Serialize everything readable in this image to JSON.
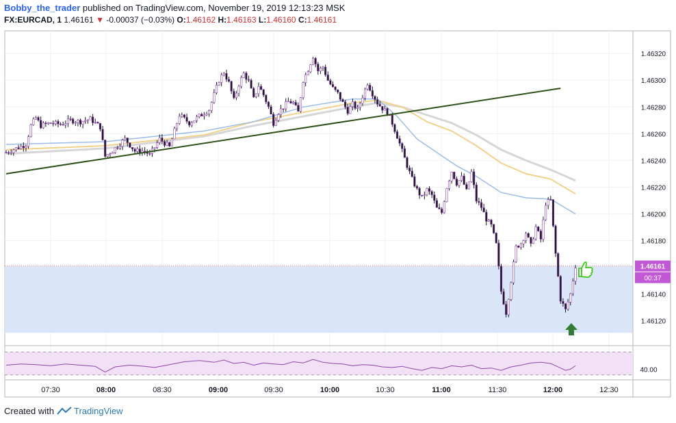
{
  "header": {
    "author": "Bobby_the_trader",
    "published_text": "published on TradingView.com, November 19, 2019 12:13:23 MSK",
    "symbol": "FX:EURCAD, 1",
    "last": "1.46161",
    "change_arrow": "▼",
    "change": "-0.00037 (−0.03%)",
    "o_label": "O:",
    "o": "1.46162",
    "h_label": "H:",
    "h": "1.46163",
    "l_label": "L:",
    "l": "1.46160",
    "c_label": "C:",
    "c": "1.46161"
  },
  "footer": {
    "created_with": "Created with",
    "brand": "TradingView"
  },
  "colors": {
    "candle": "#131722",
    "candle_outline": "#8e44ad",
    "trendline": "#2d5016",
    "ma_blue": "#9bbbe8",
    "ma_yellow": "#f2d28a",
    "ma_gray": "#d6d6d6",
    "zone_fill": "#dae6f8",
    "price_label": "#c158d6",
    "rsi_line": "#8e44ad",
    "rsi_band": "#f2e1f6",
    "thumb": "#4ccd2c",
    "arrow": "#2e7d32"
  },
  "chart_data": {
    "type": "candlestick",
    "symbol": "FX:EURCAD",
    "interval": "1",
    "price_axis": {
      "range": [
        1.46106,
        1.46337
      ],
      "ticks": [
        "1.46320",
        "1.46300",
        "1.46280",
        "1.46260",
        "1.46240",
        "1.46220",
        "1.46200",
        "1.46180",
        "1.46140",
        "1.46120"
      ]
    },
    "time_axis": {
      "ticks": [
        "07:30",
        "08:00",
        "08:30",
        "09:00",
        "09:30",
        "10:00",
        "10:30",
        "11:00",
        "11:30",
        "12:00",
        "12:30"
      ]
    },
    "last_price_label": "1.46161",
    "countdown_label": "00:37",
    "close_path": [
      [
        0,
        1.46246
      ],
      [
        4,
        1.46249
      ],
      [
        8,
        1.46252
      ],
      [
        10,
        1.46266
      ],
      [
        12,
        1.46272
      ],
      [
        14,
        1.46266
      ],
      [
        18,
        1.46268
      ],
      [
        22,
        1.46267
      ],
      [
        26,
        1.4627
      ],
      [
        30,
        1.46269
      ],
      [
        34,
        1.46271
      ],
      [
        38,
        1.46265
      ],
      [
        40,
        1.46243
      ],
      [
        44,
        1.46249
      ],
      [
        48,
        1.46256
      ],
      [
        52,
        1.46247
      ],
      [
        56,
        1.46247
      ],
      [
        58,
        1.46244
      ],
      [
        62,
        1.46256
      ],
      [
        66,
        1.4625
      ],
      [
        70,
        1.46274
      ],
      [
        74,
        1.46268
      ],
      [
        78,
        1.46273
      ],
      [
        82,
        1.46278
      ],
      [
        86,
        1.463
      ],
      [
        88,
        1.46306
      ],
      [
        90,
        1.46298
      ],
      [
        92,
        1.46285
      ],
      [
        94,
        1.46297
      ],
      [
        96,
        1.46305
      ],
      [
        98,
        1.46299
      ],
      [
        100,
        1.46286
      ],
      [
        102,
        1.46296
      ],
      [
        104,
        1.46289
      ],
      [
        106,
        1.4628
      ],
      [
        108,
        1.46268
      ],
      [
        110,
        1.46276
      ],
      [
        112,
        1.4628
      ],
      [
        114,
        1.46284
      ],
      [
        116,
        1.46283
      ],
      [
        118,
        1.46276
      ],
      [
        120,
        1.463
      ],
      [
        122,
        1.46308
      ],
      [
        124,
        1.46318
      ],
      [
        126,
        1.46307
      ],
      [
        128,
        1.4631
      ],
      [
        130,
        1.463
      ],
      [
        132,
        1.46294
      ],
      [
        134,
        1.4629
      ],
      [
        136,
        1.46283
      ],
      [
        138,
        1.46277
      ],
      [
        140,
        1.46282
      ],
      [
        142,
        1.46278
      ],
      [
        144,
        1.46288
      ],
      [
        146,
        1.46298
      ],
      [
        148,
        1.4629
      ],
      [
        150,
        1.46283
      ],
      [
        152,
        1.46279
      ],
      [
        154,
        1.46276
      ],
      [
        156,
        1.46268
      ],
      [
        158,
        1.46258
      ],
      [
        160,
        1.46247
      ],
      [
        162,
        1.46236
      ],
      [
        164,
        1.46226
      ],
      [
        166,
        1.46218
      ],
      [
        168,
        1.46212
      ],
      [
        170,
        1.46218
      ],
      [
        172,
        1.46214
      ],
      [
        174,
        1.46204
      ],
      [
        176,
        1.46201
      ],
      [
        178,
        1.4622
      ],
      [
        180,
        1.46232
      ],
      [
        182,
        1.46223
      ],
      [
        184,
        1.46227
      ],
      [
        186,
        1.46217
      ],
      [
        188,
        1.46231
      ],
      [
        190,
        1.4621
      ],
      [
        192,
        1.46205
      ],
      [
        194,
        1.46196
      ],
      [
        196,
        1.46191
      ],
      [
        198,
        1.46177
      ],
      [
        200,
        1.46142
      ],
      [
        202,
        1.46126
      ],
      [
        204,
        1.4615
      ],
      [
        206,
        1.46175
      ],
      [
        208,
        1.46178
      ],
      [
        210,
        1.46186
      ],
      [
        212,
        1.46176
      ],
      [
        214,
        1.4619
      ],
      [
        216,
        1.46181
      ],
      [
        218,
        1.46208
      ],
      [
        220,
        1.4621
      ],
      [
        222,
        1.4617
      ],
      [
        224,
        1.46136
      ],
      [
        226,
        1.46128
      ],
      [
        228,
        1.4614
      ],
      [
        230,
        1.46161
      ]
    ],
    "ma_blue": [
      [
        0,
        1.46252
      ],
      [
        40,
        1.46254
      ],
      [
        80,
        1.46262
      ],
      [
        100,
        1.46269
      ],
      [
        120,
        1.4628
      ],
      [
        140,
        1.46286
      ],
      [
        150,
        1.46286
      ],
      [
        158,
        1.46273
      ],
      [
        166,
        1.46256
      ],
      [
        174,
        1.46246
      ],
      [
        182,
        1.46236
      ],
      [
        190,
        1.46228
      ],
      [
        200,
        1.46216
      ],
      [
        210,
        1.46212
      ],
      [
        220,
        1.46211
      ],
      [
        230,
        1.462
      ]
    ],
    "ma_yellow": [
      [
        0,
        1.46248
      ],
      [
        40,
        1.46251
      ],
      [
        80,
        1.46259
      ],
      [
        100,
        1.46269
      ],
      [
        120,
        1.46276
      ],
      [
        140,
        1.46283
      ],
      [
        150,
        1.46285
      ],
      [
        160,
        1.4628
      ],
      [
        170,
        1.46269
      ],
      [
        180,
        1.46262
      ],
      [
        190,
        1.46251
      ],
      [
        200,
        1.46238
      ],
      [
        210,
        1.4623
      ],
      [
        220,
        1.46226
      ],
      [
        230,
        1.46215
      ]
    ],
    "ma_gray": [
      [
        0,
        1.46245
      ],
      [
        40,
        1.46249
      ],
      [
        80,
        1.46258
      ],
      [
        100,
        1.46266
      ],
      [
        120,
        1.46273
      ],
      [
        140,
        1.4628
      ],
      [
        150,
        1.46283
      ],
      [
        160,
        1.4628
      ],
      [
        170,
        1.46274
      ],
      [
        180,
        1.46268
      ],
      [
        190,
        1.46259
      ],
      [
        200,
        1.46248
      ],
      [
        210,
        1.4624
      ],
      [
        220,
        1.46233
      ],
      [
        230,
        1.46225
      ]
    ],
    "trendline": [
      [
        0,
        1.4623
      ],
      [
        224,
        1.46294
      ]
    ],
    "support_zone": [
      1.46111,
      1.46161
    ],
    "rsi": {
      "tick": "40.00",
      "range": [
        25,
        75
      ],
      "band": [
        30,
        70
      ],
      "values": [
        [
          0,
          47
        ],
        [
          6,
          49
        ],
        [
          12,
          48
        ],
        [
          18,
          46
        ],
        [
          24,
          49
        ],
        [
          30,
          47
        ],
        [
          36,
          45
        ],
        [
          40,
          35
        ],
        [
          44,
          44
        ],
        [
          50,
          47
        ],
        [
          56,
          45
        ],
        [
          60,
          43
        ],
        [
          66,
          48
        ],
        [
          72,
          53
        ],
        [
          78,
          55
        ],
        [
          84,
          52
        ],
        [
          88,
          56
        ],
        [
          92,
          50
        ],
        [
          96,
          52
        ],
        [
          100,
          47
        ],
        [
          104,
          51
        ],
        [
          108,
          49
        ],
        [
          112,
          48
        ],
        [
          116,
          53
        ],
        [
          120,
          51
        ],
        [
          124,
          57
        ],
        [
          128,
          52
        ],
        [
          132,
          50
        ],
        [
          136,
          49
        ],
        [
          140,
          46
        ],
        [
          144,
          48
        ],
        [
          148,
          47
        ],
        [
          152,
          44
        ],
        [
          156,
          43
        ],
        [
          160,
          45
        ],
        [
          164,
          41
        ],
        [
          168,
          38
        ],
        [
          172,
          43
        ],
        [
          176,
          41
        ],
        [
          180,
          46
        ],
        [
          184,
          44
        ],
        [
          188,
          47
        ],
        [
          192,
          41
        ],
        [
          196,
          42
        ],
        [
          200,
          38
        ],
        [
          204,
          44
        ],
        [
          208,
          47
        ],
        [
          212,
          51
        ],
        [
          216,
          52
        ],
        [
          220,
          50
        ],
        [
          224,
          42
        ],
        [
          226,
          38
        ],
        [
          228,
          40
        ],
        [
          230,
          46
        ]
      ]
    }
  }
}
